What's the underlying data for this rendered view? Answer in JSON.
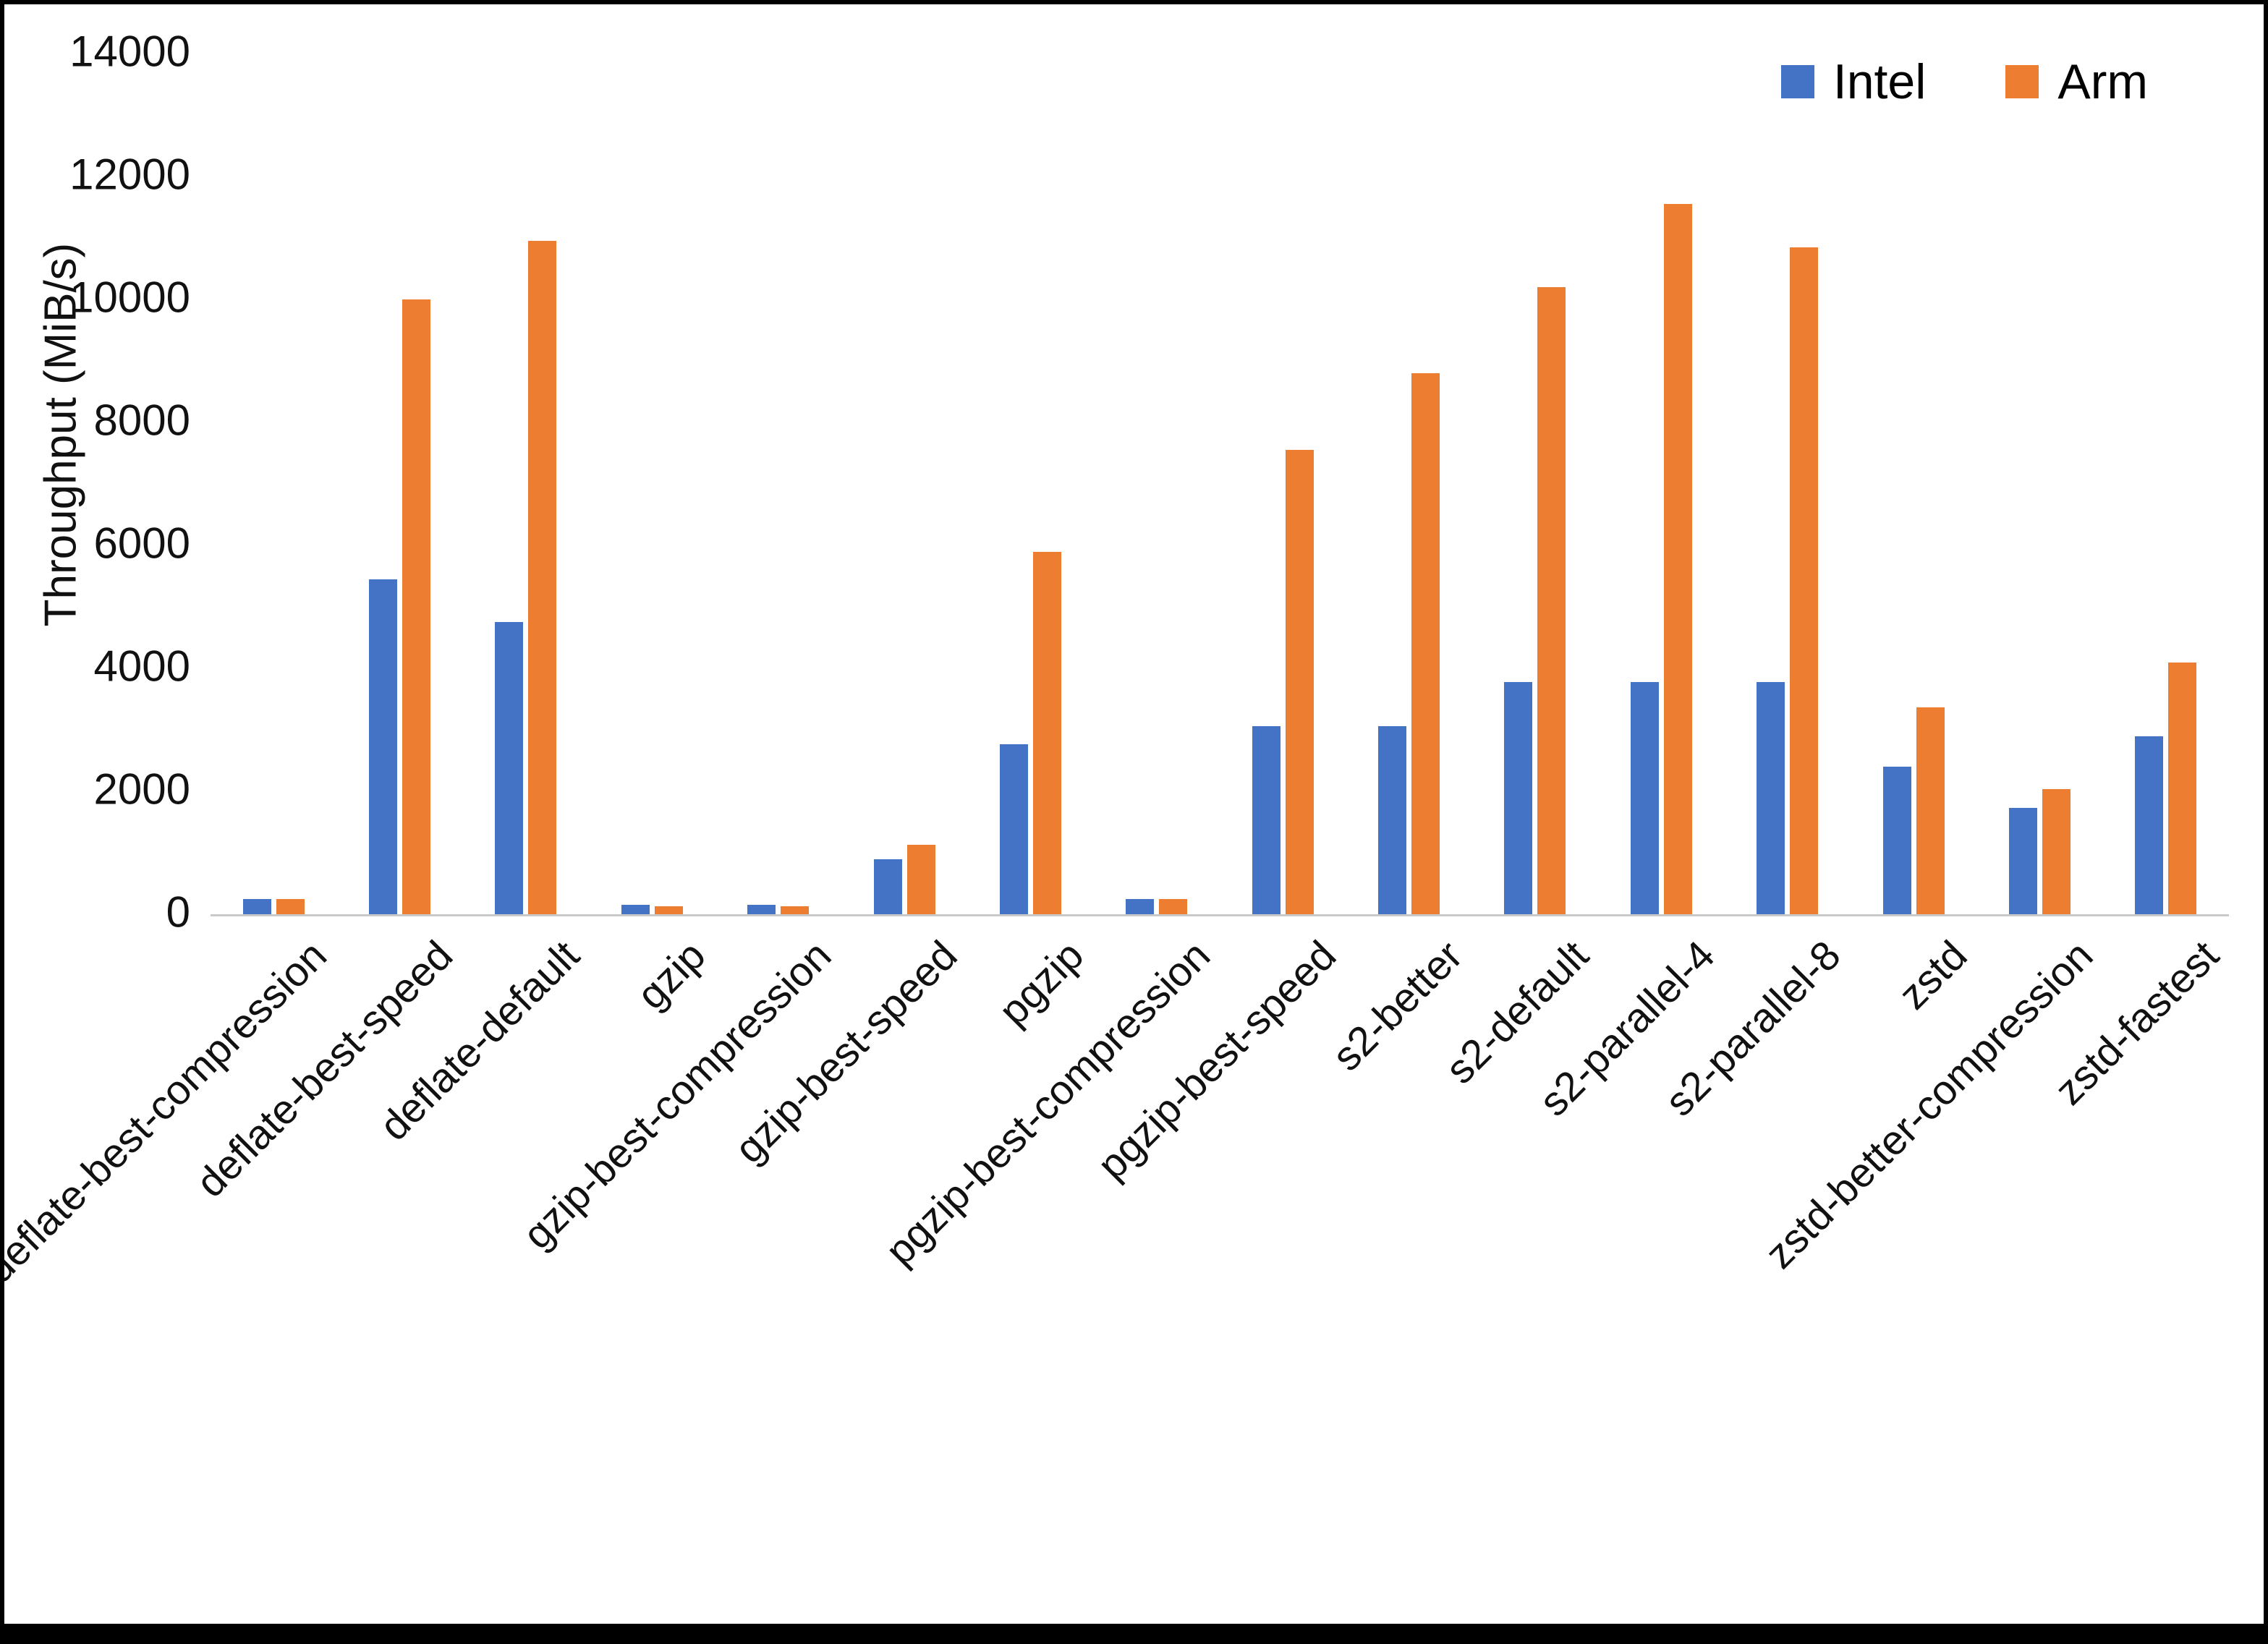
{
  "chart_data": {
    "type": "bar",
    "title": "",
    "ylabel": "Throughput (MiB/s)",
    "xlabel": "",
    "ylim": [
      0,
      14000
    ],
    "y_ticks": [
      0,
      2000,
      4000,
      6000,
      8000,
      10000,
      12000,
      14000
    ],
    "grid": false,
    "legend_position": "top-right",
    "categories": [
      "deflate-best-compression",
      "deflate-best-speed",
      "deflate-default",
      "gzip",
      "gzip-best-compression",
      "gzip-best-speed",
      "pgzip",
      "pgzip-best-compression",
      "pgzip-best-speed",
      "s2-better",
      "s2-default",
      "s2-parallel-4",
      "s2-parallel-8",
      "zstd",
      "zstd-better-compression",
      "zstd-fastest"
    ],
    "series": [
      {
        "name": "Intel",
        "color": "#4472C4",
        "values": [
          250,
          5450,
          4750,
          150,
          150,
          900,
          2760,
          250,
          3060,
          3060,
          3780,
          3780,
          3780,
          2400,
          1730,
          2900
        ]
      },
      {
        "name": "Arm",
        "color": "#ED7D31",
        "values": [
          250,
          10000,
          10950,
          130,
          130,
          1130,
          5900,
          250,
          7550,
          8800,
          10200,
          11550,
          10850,
          3370,
          2030,
          4100
        ]
      }
    ]
  }
}
